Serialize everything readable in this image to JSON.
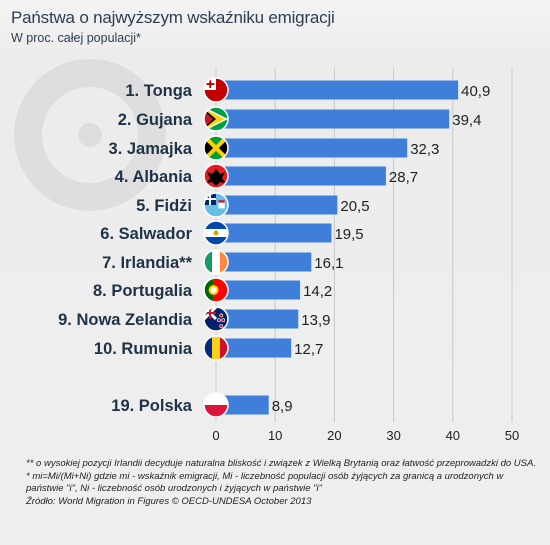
{
  "header": {
    "title": "Państwa o najwyższym wskaźniku emigracji",
    "subtitle": "W proc. całej populacji*"
  },
  "notes": [
    "** o wysokiej pozycji Irlandii decyduje naturalna bliskość i związek z Wielką Brytanią oraz łatwość przeprowadzki do USA.",
    "* mi=Mi/(Mi+Ni) gdzie mi - wskaźnik emigracji, Mi - liczebność populacji osób żyjących za granicą a urodzonych w państwie \"i\", Ni - liczebność osób urodzonych i żyjących w państwie \"i\"",
    "Źródło: World Migration in Figures © OECD-UNDESA October 2013"
  ],
  "colors": {
    "bar": "#3f7fd9",
    "grid": "#c8c8c8",
    "label": "#1f3346"
  },
  "chart_data": {
    "type": "bar",
    "orientation": "horizontal",
    "title": "Państwa o najwyższym wskaźniku emigracji",
    "subtitle": "W proc. całej populacji*",
    "categories": [
      "1. Tonga",
      "2. Gujana",
      "3. Jamajka",
      "4. Albania",
      "5. Fidżi",
      "6. Salwador",
      "7. Irlandia**",
      "8. Portugalia",
      "9. Nowa Zelandia",
      "10. Rumunia",
      "19. Polska"
    ],
    "values": [
      40.9,
      39.4,
      32.3,
      28.7,
      20.5,
      19.5,
      16.1,
      14.2,
      13.9,
      12.7,
      8.9
    ],
    "value_labels": [
      "40,9",
      "39,4",
      "32,3",
      "28,7",
      "20,5",
      "19,5",
      "16,1",
      "14,2",
      "13,9",
      "12,7",
      "8,9"
    ],
    "flags": [
      "tonga-flag-icon",
      "guyana-flag-icon",
      "jamaica-flag-icon",
      "albania-flag-icon",
      "fiji-flag-icon",
      "el-salvador-flag-icon",
      "ireland-flag-icon",
      "portugal-flag-icon",
      "new-zealand-flag-icon",
      "romania-flag-icon",
      "poland-flag-icon"
    ],
    "xlim": [
      0,
      50
    ],
    "xticks": [
      "0",
      "10",
      "20",
      "30",
      "40",
      "50"
    ],
    "grid": true
  }
}
